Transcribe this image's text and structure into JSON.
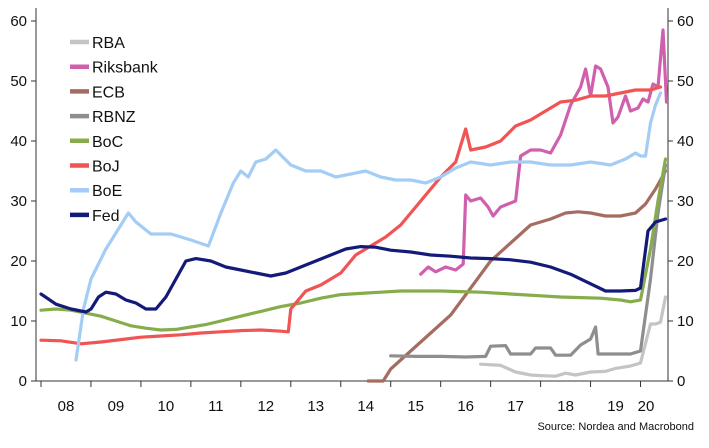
{
  "chart_data": {
    "type": "line",
    "source": "Source: Nordea and Macrobond",
    "x_tick_labels": [
      "08",
      "09",
      "10",
      "11",
      "12",
      "13",
      "14",
      "15",
      "16",
      "17",
      "18",
      "19",
      "20"
    ],
    "x_range": [
      2007.9,
      2020.55
    ],
    "y_ticks": [
      0,
      10,
      20,
      30,
      40,
      50,
      60
    ],
    "ylim": [
      0,
      60
    ],
    "y_axes": [
      "left",
      "right"
    ],
    "grid": false,
    "legend_position": "top-left",
    "series": [
      {
        "name": "RBA",
        "color": "#c4c4c4",
        "points": [
          [
            2016.8,
            2.8
          ],
          [
            2017.2,
            2.6
          ],
          [
            2017.5,
            1.5
          ],
          [
            2017.8,
            1.0
          ],
          [
            2018.0,
            0.9
          ],
          [
            2018.3,
            0.8
          ],
          [
            2018.5,
            1.3
          ],
          [
            2018.7,
            1.0
          ],
          [
            2019.0,
            1.5
          ],
          [
            2019.3,
            1.6
          ],
          [
            2019.5,
            2.1
          ],
          [
            2019.8,
            2.5
          ],
          [
            2020.0,
            3.0
          ],
          [
            2020.2,
            9.5
          ],
          [
            2020.3,
            9.5
          ],
          [
            2020.4,
            9.8
          ],
          [
            2020.5,
            14.0
          ]
        ]
      },
      {
        "name": "Riksbank",
        "color": "#d05fae",
        "points": [
          [
            2015.6,
            17.8
          ],
          [
            2015.75,
            19.0
          ],
          [
            2015.9,
            18.2
          ],
          [
            2016.1,
            19.0
          ],
          [
            2016.3,
            18.5
          ],
          [
            2016.45,
            19.5
          ],
          [
            2016.5,
            31.0
          ],
          [
            2016.6,
            30.0
          ],
          [
            2016.8,
            30.5
          ],
          [
            2016.95,
            29.0
          ],
          [
            2017.05,
            27.5
          ],
          [
            2017.2,
            29.0
          ],
          [
            2017.5,
            30.0
          ],
          [
            2017.6,
            37.5
          ],
          [
            2017.8,
            38.5
          ],
          [
            2018.0,
            38.5
          ],
          [
            2018.2,
            38.0
          ],
          [
            2018.4,
            41.0
          ],
          [
            2018.6,
            46.0
          ],
          [
            2018.8,
            49.0
          ],
          [
            2018.9,
            52.0
          ],
          [
            2019.0,
            47.5
          ],
          [
            2019.1,
            52.5
          ],
          [
            2019.2,
            52.0
          ],
          [
            2019.35,
            49.0
          ],
          [
            2019.45,
            43.0
          ],
          [
            2019.55,
            44.0
          ],
          [
            2019.7,
            47.5
          ],
          [
            2019.8,
            45.0
          ],
          [
            2019.95,
            45.5
          ],
          [
            2020.05,
            47.0
          ],
          [
            2020.15,
            46.5
          ],
          [
            2020.25,
            49.5
          ],
          [
            2020.35,
            49.0
          ],
          [
            2020.45,
            58.5
          ],
          [
            2020.52,
            46.5
          ]
        ]
      },
      {
        "name": "ECB",
        "color": "#a56d62",
        "points": [
          [
            2014.55,
            0.0
          ],
          [
            2014.85,
            0.0
          ],
          [
            2015.0,
            2.0
          ],
          [
            2015.4,
            5.0
          ],
          [
            2015.8,
            8.0
          ],
          [
            2016.2,
            11.0
          ],
          [
            2016.6,
            15.5
          ],
          [
            2017.0,
            20.0
          ],
          [
            2017.4,
            23.0
          ],
          [
            2017.8,
            26.0
          ],
          [
            2018.2,
            27.0
          ],
          [
            2018.5,
            28.0
          ],
          [
            2018.75,
            28.2
          ],
          [
            2019.0,
            28.0
          ],
          [
            2019.3,
            27.5
          ],
          [
            2019.6,
            27.5
          ],
          [
            2019.9,
            28.0
          ],
          [
            2020.1,
            29.5
          ],
          [
            2020.3,
            32.0
          ],
          [
            2020.5,
            35.0
          ]
        ]
      },
      {
        "name": "RBNZ",
        "color": "#8e8e8e",
        "points": [
          [
            2015.0,
            4.2
          ],
          [
            2015.5,
            4.1
          ],
          [
            2016.0,
            4.1
          ],
          [
            2016.5,
            4.0
          ],
          [
            2016.9,
            4.1
          ],
          [
            2017.0,
            5.8
          ],
          [
            2017.3,
            5.9
          ],
          [
            2017.4,
            4.5
          ],
          [
            2017.8,
            4.5
          ],
          [
            2017.9,
            5.5
          ],
          [
            2018.2,
            5.5
          ],
          [
            2018.3,
            4.3
          ],
          [
            2018.6,
            4.3
          ],
          [
            2018.8,
            6.0
          ],
          [
            2019.0,
            7.0
          ],
          [
            2019.1,
            9.0
          ],
          [
            2019.15,
            4.5
          ],
          [
            2019.5,
            4.5
          ],
          [
            2019.8,
            4.5
          ],
          [
            2020.0,
            5.0
          ],
          [
            2020.2,
            17.0
          ],
          [
            2020.35,
            28.0
          ],
          [
            2020.5,
            36.0
          ]
        ]
      },
      {
        "name": "BoC",
        "color": "#86ac4c",
        "points": [
          [
            2008.0,
            11.8
          ],
          [
            2008.3,
            12.0
          ],
          [
            2008.6,
            11.8
          ],
          [
            2008.9,
            11.3
          ],
          [
            2009.2,
            10.8
          ],
          [
            2009.5,
            10.0
          ],
          [
            2009.8,
            9.2
          ],
          [
            2010.1,
            8.8
          ],
          [
            2010.4,
            8.5
          ],
          [
            2010.7,
            8.6
          ],
          [
            2011.0,
            9.0
          ],
          [
            2011.3,
            9.4
          ],
          [
            2011.6,
            10.0
          ],
          [
            2012.0,
            10.8
          ],
          [
            2012.4,
            11.6
          ],
          [
            2012.8,
            12.4
          ],
          [
            2013.2,
            13.0
          ],
          [
            2013.6,
            13.8
          ],
          [
            2014.0,
            14.4
          ],
          [
            2014.4,
            14.6
          ],
          [
            2014.8,
            14.8
          ],
          [
            2015.2,
            15.0
          ],
          [
            2015.6,
            15.0
          ],
          [
            2016.0,
            15.0
          ],
          [
            2016.4,
            14.9
          ],
          [
            2016.8,
            14.8
          ],
          [
            2017.2,
            14.6
          ],
          [
            2017.6,
            14.4
          ],
          [
            2018.0,
            14.2
          ],
          [
            2018.4,
            14.0
          ],
          [
            2018.8,
            13.9
          ],
          [
            2019.2,
            13.8
          ],
          [
            2019.6,
            13.5
          ],
          [
            2019.8,
            13.2
          ],
          [
            2020.0,
            13.5
          ],
          [
            2020.2,
            22.0
          ],
          [
            2020.35,
            30.0
          ],
          [
            2020.5,
            37.0
          ]
        ]
      },
      {
        "name": "BoJ",
        "color": "#f05454",
        "points": [
          [
            2008.0,
            6.8
          ],
          [
            2008.4,
            6.7
          ],
          [
            2008.8,
            6.2
          ],
          [
            2009.2,
            6.5
          ],
          [
            2009.6,
            6.9
          ],
          [
            2010.0,
            7.3
          ],
          [
            2010.4,
            7.5
          ],
          [
            2010.8,
            7.7
          ],
          [
            2011.2,
            8.0
          ],
          [
            2011.6,
            8.2
          ],
          [
            2012.0,
            8.4
          ],
          [
            2012.4,
            8.5
          ],
          [
            2012.8,
            8.3
          ],
          [
            2012.95,
            8.2
          ],
          [
            2013.0,
            12.0
          ],
          [
            2013.3,
            15.0
          ],
          [
            2013.6,
            16.0
          ],
          [
            2014.0,
            18.0
          ],
          [
            2014.3,
            21.0
          ],
          [
            2014.6,
            22.5
          ],
          [
            2014.9,
            24.0
          ],
          [
            2015.2,
            26.0
          ],
          [
            2015.5,
            29.0
          ],
          [
            2015.8,
            32.0
          ],
          [
            2016.0,
            34.0
          ],
          [
            2016.3,
            36.5
          ],
          [
            2016.5,
            42.0
          ],
          [
            2016.6,
            38.5
          ],
          [
            2016.9,
            39.0
          ],
          [
            2017.2,
            40.0
          ],
          [
            2017.5,
            42.5
          ],
          [
            2017.8,
            43.5
          ],
          [
            2018.1,
            45.0
          ],
          [
            2018.4,
            46.5
          ],
          [
            2018.7,
            46.8
          ],
          [
            2019.0,
            47.5
          ],
          [
            2019.3,
            47.5
          ],
          [
            2019.6,
            48.0
          ],
          [
            2019.9,
            48.5
          ],
          [
            2020.2,
            48.5
          ],
          [
            2020.4,
            49.0
          ]
        ]
      },
      {
        "name": "BoE",
        "color": "#a3cdf4",
        "points": [
          [
            2008.7,
            3.5
          ],
          [
            2008.85,
            12.0
          ],
          [
            2009.0,
            17.0
          ],
          [
            2009.3,
            22.0
          ],
          [
            2009.6,
            26.0
          ],
          [
            2009.75,
            28.0
          ],
          [
            2009.9,
            26.5
          ],
          [
            2010.2,
            24.5
          ],
          [
            2010.6,
            24.5
          ],
          [
            2011.0,
            23.5
          ],
          [
            2011.35,
            22.5
          ],
          [
            2011.6,
            28.0
          ],
          [
            2011.85,
            33.0
          ],
          [
            2012.0,
            35.0
          ],
          [
            2012.15,
            34.0
          ],
          [
            2012.3,
            36.5
          ],
          [
            2012.5,
            37.0
          ],
          [
            2012.7,
            38.5
          ],
          [
            2013.0,
            36.0
          ],
          [
            2013.3,
            35.0
          ],
          [
            2013.6,
            35.0
          ],
          [
            2013.9,
            34.0
          ],
          [
            2014.2,
            34.5
          ],
          [
            2014.5,
            35.0
          ],
          [
            2014.8,
            34.0
          ],
          [
            2015.1,
            33.5
          ],
          [
            2015.4,
            33.5
          ],
          [
            2015.7,
            33.0
          ],
          [
            2016.0,
            34.0
          ],
          [
            2016.3,
            35.5
          ],
          [
            2016.6,
            36.5
          ],
          [
            2017.0,
            36.0
          ],
          [
            2017.4,
            36.5
          ],
          [
            2017.8,
            36.5
          ],
          [
            2018.2,
            36.0
          ],
          [
            2018.6,
            36.0
          ],
          [
            2019.0,
            36.5
          ],
          [
            2019.4,
            36.0
          ],
          [
            2019.7,
            37.0
          ],
          [
            2019.9,
            38.0
          ],
          [
            2020.0,
            37.5
          ],
          [
            2020.1,
            37.5
          ],
          [
            2020.2,
            43.0
          ],
          [
            2020.3,
            46.0
          ],
          [
            2020.4,
            48.0
          ]
        ]
      },
      {
        "name": "Fed",
        "color": "#131a78",
        "points": [
          [
            2008.0,
            14.5
          ],
          [
            2008.3,
            12.8
          ],
          [
            2008.6,
            12.0
          ],
          [
            2008.9,
            11.5
          ],
          [
            2009.0,
            12.0
          ],
          [
            2009.15,
            14.0
          ],
          [
            2009.3,
            14.8
          ],
          [
            2009.5,
            14.5
          ],
          [
            2009.7,
            13.5
          ],
          [
            2009.9,
            13.0
          ],
          [
            2010.1,
            12.0
          ],
          [
            2010.3,
            12.0
          ],
          [
            2010.5,
            14.0
          ],
          [
            2010.7,
            17.0
          ],
          [
            2010.9,
            20.0
          ],
          [
            2011.1,
            20.4
          ],
          [
            2011.4,
            20.0
          ],
          [
            2011.7,
            19.0
          ],
          [
            2012.0,
            18.5
          ],
          [
            2012.3,
            18.0
          ],
          [
            2012.6,
            17.5
          ],
          [
            2012.9,
            18.0
          ],
          [
            2013.2,
            19.0
          ],
          [
            2013.5,
            20.0
          ],
          [
            2013.8,
            21.0
          ],
          [
            2014.1,
            22.0
          ],
          [
            2014.4,
            22.4
          ],
          [
            2014.7,
            22.3
          ],
          [
            2015.0,
            21.8
          ],
          [
            2015.4,
            21.5
          ],
          [
            2015.8,
            21.0
          ],
          [
            2016.2,
            20.8
          ],
          [
            2016.6,
            20.5
          ],
          [
            2017.0,
            20.4
          ],
          [
            2017.4,
            20.2
          ],
          [
            2017.8,
            19.8
          ],
          [
            2018.2,
            19.0
          ],
          [
            2018.6,
            17.8
          ],
          [
            2019.0,
            16.2
          ],
          [
            2019.3,
            15.0
          ],
          [
            2019.6,
            15.0
          ],
          [
            2019.9,
            15.1
          ],
          [
            2020.0,
            15.5
          ],
          [
            2020.15,
            25.0
          ],
          [
            2020.3,
            26.5
          ],
          [
            2020.5,
            27.0
          ]
        ]
      }
    ]
  }
}
